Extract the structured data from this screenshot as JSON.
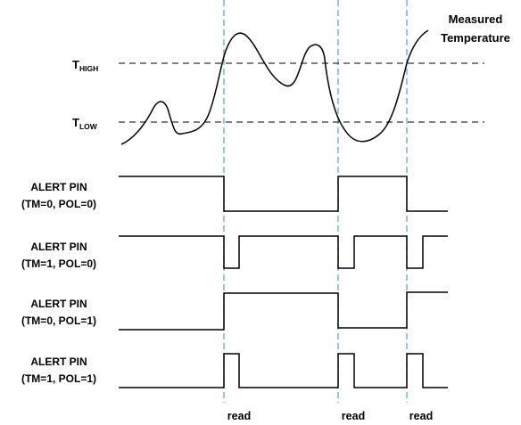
{
  "thresholds": {
    "high": {
      "base": "T",
      "sub": "HIGH"
    },
    "low": {
      "base": "T",
      "sub": "LOW"
    }
  },
  "measured_label": {
    "line1": "Measured",
    "line2": "Temperature"
  },
  "alert_pins": [
    {
      "line1": "ALERT PIN",
      "line2": "(TM=0, POL=0)"
    },
    {
      "line1": "ALERT PIN",
      "line2": "(TM=1, POL=0)"
    },
    {
      "line1": "ALERT PIN",
      "line2": "(TM=0, POL=1)"
    },
    {
      "line1": "ALERT PIN",
      "line2": "(TM=1, POL=1)"
    }
  ],
  "read_markers": [
    "read",
    "read",
    "read"
  ],
  "colors": {
    "read_line": "#5b9bd5",
    "signal": "#000000",
    "threshold": "#000000"
  }
}
